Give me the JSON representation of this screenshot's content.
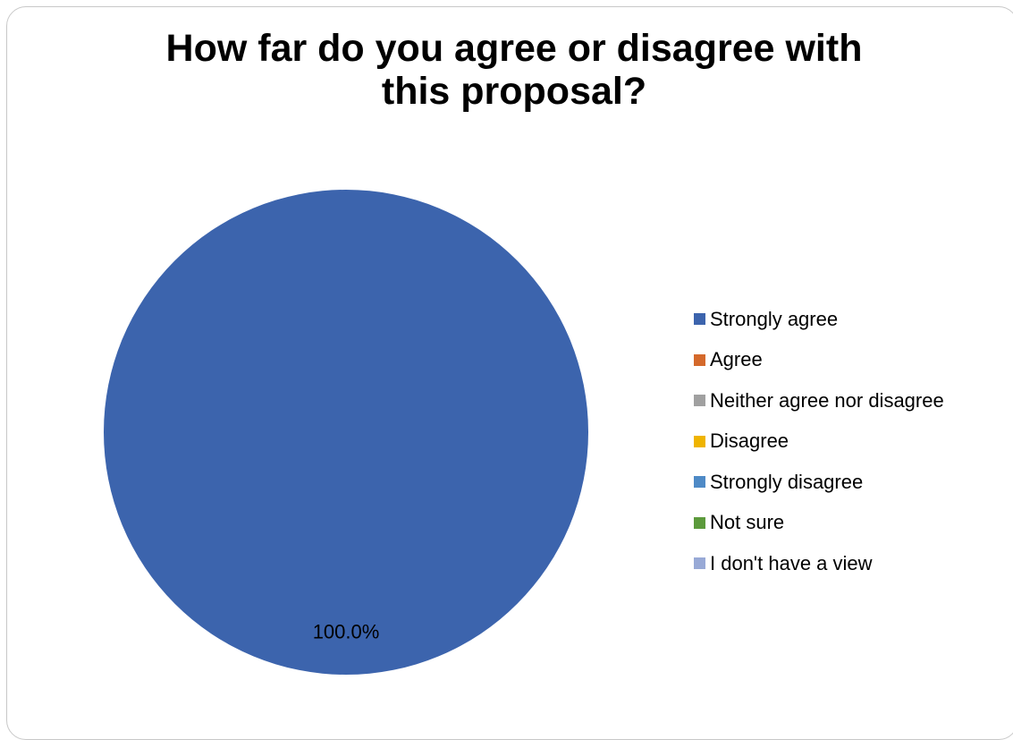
{
  "chart_data": {
    "type": "pie",
    "title": "How far do you agree or disagree with this proposal?",
    "title_lines": [
      "How far do you agree or disagree with",
      "this proposal?"
    ],
    "categories": [
      "Strongly agree",
      "Agree",
      "Neither agree nor disagree",
      "Disagree",
      "Strongly disagree",
      "Not sure",
      "I don't have a view"
    ],
    "values": [
      100.0,
      0,
      0,
      0,
      0,
      0,
      0
    ],
    "colors": [
      "#3c64ad",
      "#d4692b",
      "#a0a0a0",
      "#efb400",
      "#4e8ac6",
      "#5c9a3c",
      "#98a9d6"
    ],
    "data_labels": [
      "100.0%",
      "",
      "",
      "",
      "",
      "",
      ""
    ],
    "legend_position": "right",
    "grid": false
  }
}
